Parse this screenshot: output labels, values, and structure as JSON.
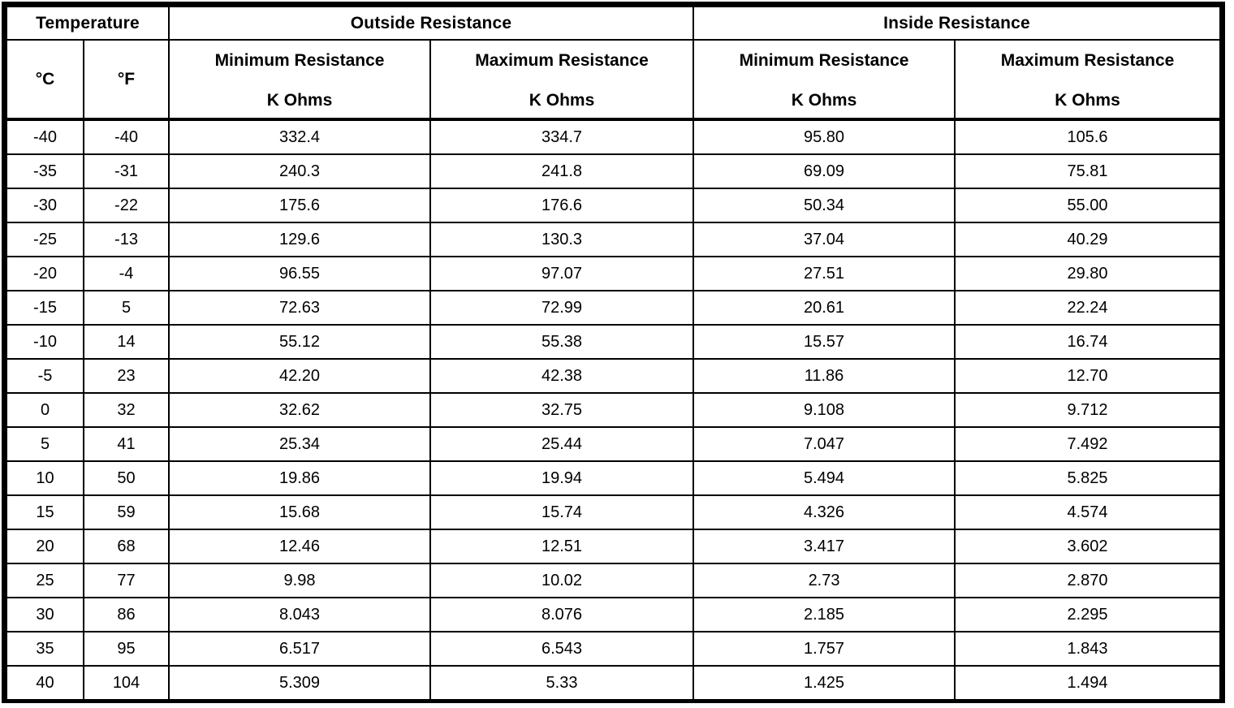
{
  "table": {
    "group_headers": {
      "temperature": "Temperature",
      "outside": "Outside Resistance",
      "inside": "Inside Resistance"
    },
    "sub_headers": {
      "celsius": "°C",
      "fahrenheit": "°F",
      "min_label": "Minimum Resistance",
      "max_label": "Maximum Resistance",
      "unit_label": "K Ohms"
    },
    "columns": [
      "temp-c",
      "temp-f",
      "outside-min-kohms",
      "outside-max-kohms",
      "inside-min-kohms",
      "inside-max-kohms"
    ],
    "rows": [
      [
        "-40",
        "-40",
        "332.4",
        "334.7",
        "95.80",
        "105.6"
      ],
      [
        "-35",
        "-31",
        "240.3",
        "241.8",
        "69.09",
        "75.81"
      ],
      [
        "-30",
        "-22",
        "175.6",
        "176.6",
        "50.34",
        "55.00"
      ],
      [
        "-25",
        "-13",
        "129.6",
        "130.3",
        "37.04",
        "40.29"
      ],
      [
        "-20",
        "-4",
        "96.55",
        "97.07",
        "27.51",
        "29.80"
      ],
      [
        "-15",
        "5",
        "72.63",
        "72.99",
        "20.61",
        "22.24"
      ],
      [
        "-10",
        "14",
        "55.12",
        "55.38",
        "15.57",
        "16.74"
      ],
      [
        "-5",
        "23",
        "42.20",
        "42.38",
        "11.86",
        "12.70"
      ],
      [
        "0",
        "32",
        "32.62",
        "32.75",
        "9.108",
        "9.712"
      ],
      [
        "5",
        "41",
        "25.34",
        "25.44",
        "7.047",
        "7.492"
      ],
      [
        "10",
        "50",
        "19.86",
        "19.94",
        "5.494",
        "5.825"
      ],
      [
        "15",
        "59",
        "15.68",
        "15.74",
        "4.326",
        "4.574"
      ],
      [
        "20",
        "68",
        "12.46",
        "12.51",
        "3.417",
        "3.602"
      ],
      [
        "25",
        "77",
        "9.98",
        "10.02",
        "2.73",
        "2.870"
      ],
      [
        "30",
        "86",
        "8.043",
        "8.076",
        "2.185",
        "2.295"
      ],
      [
        "35",
        "95",
        "6.517",
        "6.543",
        "1.757",
        "1.843"
      ],
      [
        "40",
        "104",
        "5.309",
        "5.33",
        "1.425",
        "1.494"
      ]
    ],
    "colors": {
      "border": "#000000",
      "background": "#ffffff",
      "text": "#000000"
    }
  }
}
